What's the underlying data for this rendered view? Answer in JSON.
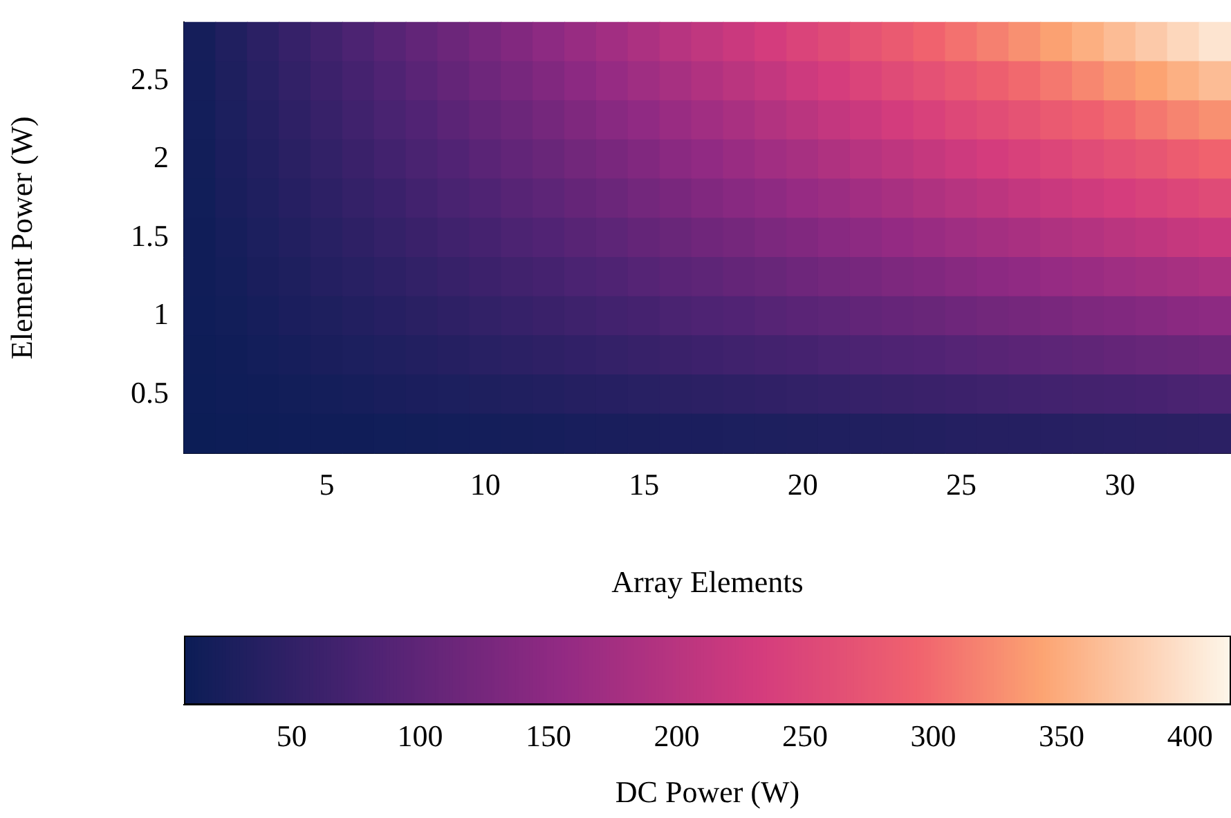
{
  "chart_data": {
    "type": "heatmap",
    "xlabel": "Array Elements",
    "ylabel": "Element Power (W)",
    "clabel": "DC Power (W)",
    "categories": [
      null,
      null,
      null,
      null,
      "5",
      null,
      null,
      null,
      null,
      "10",
      null,
      null,
      null,
      null,
      "15",
      null,
      null,
      null,
      null,
      "20",
      null,
      null,
      null,
      null,
      "25",
      null,
      null,
      null,
      null,
      "30",
      null,
      null,
      null
    ],
    "y_categories": [
      null,
      "2.5",
      null,
      "2",
      null,
      "1.5",
      null,
      "1",
      null,
      "0.5",
      null
    ],
    "cells": [
      [
        19,
        31,
        43,
        55,
        67,
        79,
        91,
        103,
        114,
        126,
        138,
        150,
        162,
        174,
        186,
        198,
        209,
        221,
        233,
        245,
        257,
        269,
        281,
        293,
        305,
        316,
        328,
        340,
        352,
        364,
        376,
        388,
        400
      ],
      [
        18,
        29,
        40,
        51,
        62,
        72,
        83,
        94,
        105,
        116,
        126,
        137,
        148,
        159,
        170,
        180,
        191,
        202,
        213,
        224,
        234,
        245,
        256,
        267,
        278,
        288,
        299,
        310,
        321,
        332,
        342,
        353,
        364
      ],
      [
        17,
        27,
        37,
        46,
        56,
        66,
        76,
        85,
        95,
        105,
        114,
        124,
        134,
        144,
        153,
        163,
        173,
        182,
        192,
        202,
        212,
        221,
        231,
        241,
        251,
        260,
        270,
        280,
        289,
        299,
        309,
        319,
        328
      ],
      [
        16,
        25,
        33,
        42,
        51,
        59,
        68,
        77,
        85,
        94,
        103,
        111,
        120,
        128,
        137,
        146,
        154,
        163,
        172,
        180,
        189,
        198,
        206,
        215,
        224,
        232,
        241,
        249,
        258,
        267,
        275,
        284,
        293
      ],
      [
        15,
        23,
        30,
        38,
        45,
        53,
        60,
        68,
        76,
        83,
        91,
        98,
        106,
        113,
        121,
        128,
        136,
        144,
        151,
        159,
        166,
        174,
        181,
        189,
        197,
        204,
        212,
        219,
        227,
        234,
        242,
        249,
        257
      ],
      [
        14,
        20,
        27,
        33,
        40,
        46,
        53,
        59,
        66,
        72,
        79,
        85,
        92,
        98,
        105,
        111,
        118,
        124,
        131,
        137,
        144,
        150,
        157,
        163,
        170,
        176,
        182,
        189,
        195,
        202,
        208,
        215,
        221
      ],
      [
        13,
        18,
        24,
        29,
        35,
        40,
        45,
        51,
        56,
        62,
        67,
        72,
        78,
        83,
        89,
        94,
        99,
        105,
        110,
        116,
        121,
        126,
        132,
        137,
        143,
        148,
        153,
        159,
        164,
        170,
        175,
        180,
        186
      ],
      [
        12,
        16,
        20,
        25,
        29,
        33,
        38,
        42,
        46,
        51,
        55,
        59,
        64,
        68,
        72,
        77,
        81,
        85,
        90,
        94,
        98,
        103,
        107,
        111,
        116,
        120,
        124,
        128,
        133,
        137,
        141,
        146,
        150
      ],
      [
        11,
        14,
        17,
        20,
        24,
        27,
        30,
        33,
        37,
        40,
        43,
        46,
        50,
        53,
        56,
        59,
        63,
        66,
        69,
        72,
        76,
        79,
        82,
        85,
        89,
        92,
        95,
        98,
        101,
        105,
        108,
        111,
        114
      ],
      [
        10,
        12,
        14,
        16,
        18,
        20,
        23,
        25,
        27,
        29,
        31,
        33,
        36,
        38,
        40,
        42,
        44,
        46,
        49,
        51,
        53,
        55,
        57,
        59,
        62,
        64,
        66,
        68,
        70,
        72,
        74,
        77,
        79
      ],
      [
        9,
        10,
        11,
        12,
        13,
        14,
        15,
        16,
        17,
        18,
        19,
        20,
        22,
        23,
        24,
        25,
        26,
        27,
        28,
        29,
        30,
        31,
        32,
        33,
        35,
        36,
        37,
        38,
        39,
        40,
        41,
        42,
        43
      ]
    ],
    "clim": [
      8,
      416
    ],
    "cticks": [
      50,
      100,
      150,
      200,
      250,
      300,
      350,
      400
    ]
  }
}
